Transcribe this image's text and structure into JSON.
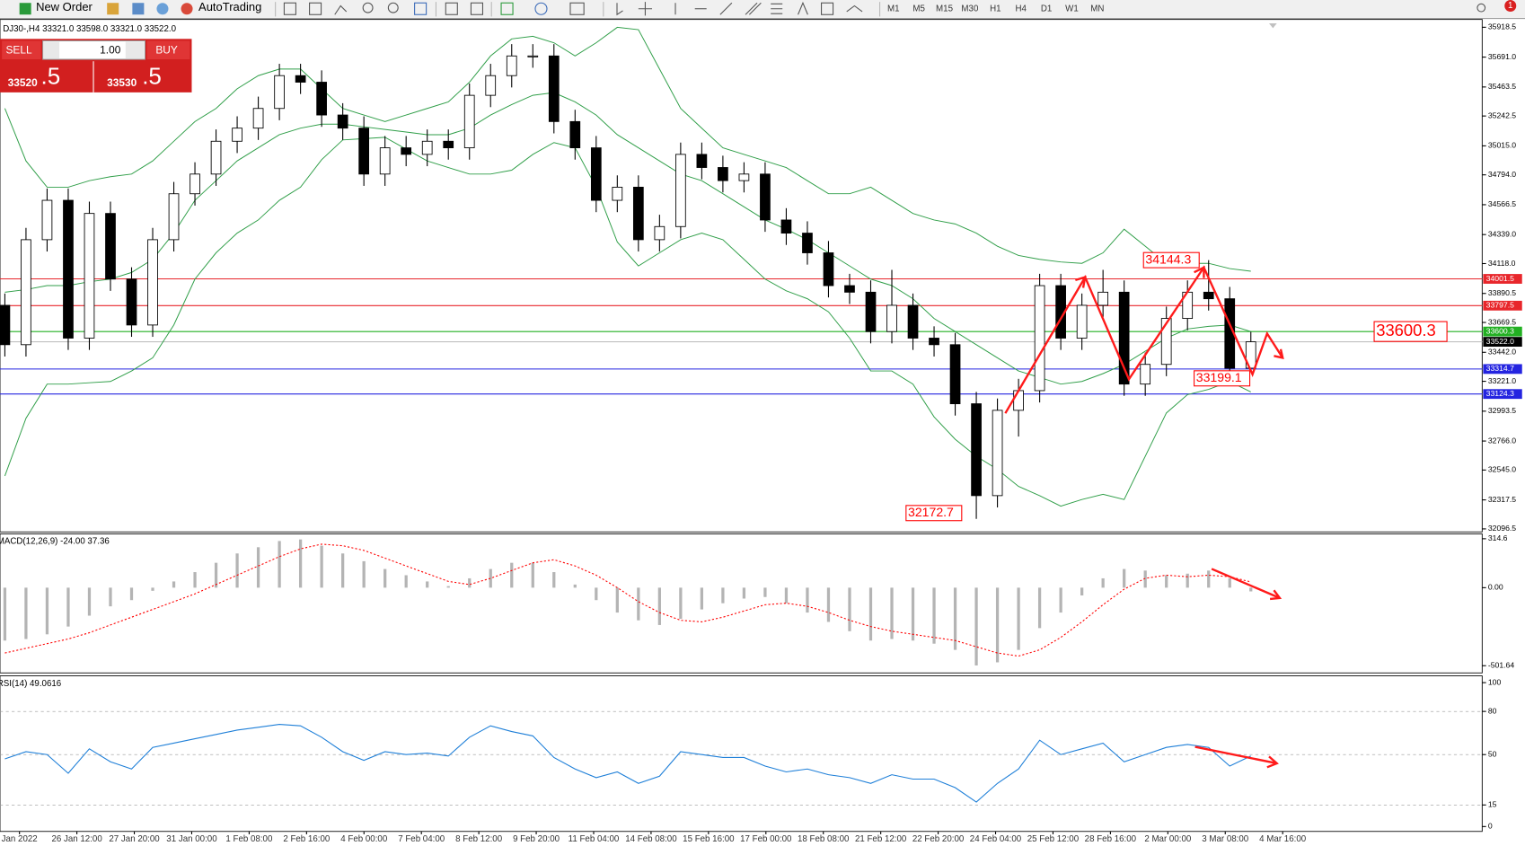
{
  "toolbar": {
    "new_order": "New Order",
    "auto_trading": "AutoTrading",
    "timeframes": [
      "M1",
      "M5",
      "M15",
      "M30",
      "H1",
      "H4",
      "D1",
      "W1",
      "MN"
    ],
    "badge": "1"
  },
  "trade_panel": {
    "sell": "SELL",
    "lot": "1.00",
    "buy": "BUY",
    "bid_main": "33520",
    "bid_pip": ".5",
    "ask_main": "33530",
    "ask_pip": ".5"
  },
  "time_axis": {
    "labels": [
      "Jan 2022",
      "26 Jan 12:00",
      "27 Jan 20:00",
      "31 Jan 00:00",
      "1 Feb 08:00",
      "2 Feb 16:00",
      "4 Feb 00:00",
      "7 Feb 04:00",
      "8 Feb 12:00",
      "9 Feb 20:00",
      "11 Feb 04:00",
      "14 Feb 08:00",
      "15 Feb 16:00",
      "17 Feb 00:00",
      "18 Feb 08:00",
      "21 Feb 12:00",
      "22 Feb 20:00",
      "24 Feb 04:00",
      "25 Feb 12:00",
      "28 Feb 16:00",
      "2 Mar 00:00",
      "3 Mar 08:00",
      "4 Mar 16:00"
    ]
  },
  "chart_data": [
    {
      "type": "candlestick",
      "title": "DJ30-,H4 33321.0 33598.0 33321.0 33522.0",
      "candles": [
        [
          33800,
          33890,
          33410,
          33500
        ],
        [
          33500,
          34390,
          33410,
          34300
        ],
        [
          34300,
          34690,
          34210,
          34600
        ],
        [
          34600,
          34690,
          33460,
          33550
        ],
        [
          33550,
          34590,
          33460,
          34500
        ],
        [
          34500,
          34590,
          33910,
          34000
        ],
        [
          34000,
          34090,
          33560,
          33650
        ],
        [
          33650,
          34390,
          33560,
          34300
        ],
        [
          34300,
          34740,
          34210,
          34650
        ],
        [
          34650,
          34890,
          34560,
          34800
        ],
        [
          34800,
          35140,
          34710,
          35050
        ],
        [
          35050,
          35240,
          34960,
          35150
        ],
        [
          35150,
          35390,
          35060,
          35300
        ],
        [
          35300,
          35640,
          35210,
          35550
        ],
        [
          35550,
          35640,
          35410,
          35500
        ],
        [
          35500,
          35590,
          35160,
          35250
        ],
        [
          35250,
          35340,
          35060,
          35150
        ],
        [
          35150,
          35240,
          34710,
          34800
        ],
        [
          34800,
          35090,
          34710,
          35000
        ],
        [
          35000,
          35090,
          34860,
          34950
        ],
        [
          34950,
          35140,
          34860,
          35050
        ],
        [
          35050,
          35140,
          34910,
          35000
        ],
        [
          35000,
          35490,
          34910,
          35400
        ],
        [
          35400,
          35640,
          35310,
          35550
        ],
        [
          35550,
          35790,
          35460,
          35700
        ],
        [
          35700,
          35790,
          35610,
          35700
        ],
        [
          35700,
          35790,
          35110,
          35200
        ],
        [
          35200,
          35290,
          34910,
          35000
        ],
        [
          35000,
          35090,
          34510,
          34600
        ],
        [
          34600,
          34790,
          34510,
          34700
        ],
        [
          34700,
          34790,
          34210,
          34300
        ],
        [
          34300,
          34490,
          34210,
          34400
        ],
        [
          34400,
          35040,
          34310,
          34950
        ],
        [
          34950,
          35040,
          34760,
          34850
        ],
        [
          34850,
          34940,
          34660,
          34750
        ],
        [
          34750,
          34890,
          34660,
          34800
        ],
        [
          34800,
          34890,
          34360,
          34450
        ],
        [
          34450,
          34540,
          34260,
          34350
        ],
        [
          34350,
          34440,
          34110,
          34200
        ],
        [
          34200,
          34290,
          33860,
          33950
        ],
        [
          33950,
          34040,
          33810,
          33900
        ],
        [
          33900,
          33990,
          33510,
          33600
        ],
        [
          33600,
          34070,
          33510,
          33800
        ],
        [
          33800,
          33890,
          33460,
          33550
        ],
        [
          33550,
          33640,
          33410,
          33500
        ],
        [
          33500,
          33590,
          32960,
          33050
        ],
        [
          33050,
          33140,
          32172.7,
          32350
        ],
        [
          32350,
          33090,
          32260,
          33000
        ],
        [
          33000,
          33240,
          32800,
          33150
        ],
        [
          33150,
          34040,
          33060,
          33950
        ],
        [
          33950,
          34040,
          33460,
          33550
        ],
        [
          33550,
          33890,
          33460,
          33800
        ],
        [
          33800,
          34070,
          33710,
          33900
        ],
        [
          33900,
          33990,
          33110,
          33200
        ],
        [
          33200,
          33440,
          33110,
          33350
        ],
        [
          33350,
          33790,
          33260,
          33700
        ],
        [
          33700,
          33990,
          33610,
          33900
        ],
        [
          33900,
          34144.3,
          33760,
          33850
        ],
        [
          33850,
          33940,
          33199.1,
          33321
        ],
        [
          33321,
          33598,
          33321,
          33522
        ]
      ],
      "bands": {
        "upper": [
          35300,
          34900,
          34700,
          34700,
          34750,
          34780,
          34800,
          34900,
          35050,
          35200,
          35300,
          35450,
          35550,
          35600,
          35600,
          35450,
          35300,
          35250,
          35200,
          35250,
          35300,
          35350,
          35500,
          35700,
          35830,
          35850,
          35800,
          35700,
          35800,
          35918,
          35900,
          35600,
          35300,
          35150,
          35000,
          34950,
          34900,
          34850,
          34750,
          34650,
          34650,
          34700,
          34600,
          34500,
          34450,
          34420,
          34350,
          34250,
          34180,
          34150,
          34130,
          34120,
          34200,
          34380,
          34250,
          34120,
          34120,
          34120,
          34080,
          34060
        ],
        "middle": [
          33900,
          33920,
          33950,
          33950,
          33980,
          34000,
          34050,
          34150,
          34350,
          34600,
          34750,
          34900,
          35000,
          35100,
          35150,
          35180,
          35180,
          35160,
          35140,
          35120,
          35100,
          35100,
          35150,
          35250,
          35330,
          35400,
          35420,
          35350,
          35250,
          35100,
          35000,
          34900,
          34800,
          34750,
          34650,
          34550,
          34450,
          34380,
          34300,
          34200,
          34100,
          34000,
          33950,
          33850,
          33700,
          33600,
          33500,
          33400,
          33300,
          33250,
          33200,
          33220,
          33280,
          33350,
          33450,
          33550,
          33620,
          33640,
          33650,
          33600
        ],
        "lower": [
          32500,
          32940,
          33200,
          33200,
          33210,
          33220,
          33300,
          33400,
          33650,
          34000,
          34200,
          34350,
          34450,
          34600,
          34700,
          34910,
          35060,
          35070,
          35080,
          34990,
          34900,
          34850,
          34800,
          34800,
          34830,
          34950,
          35040,
          35000,
          34700,
          34282,
          34100,
          34200,
          34300,
          34350,
          34300,
          34150,
          34000,
          33910,
          33850,
          33750,
          33550,
          33300,
          33300,
          33200,
          32950,
          32780,
          32650,
          32550,
          32420,
          32350,
          32270,
          32320,
          32360,
          32320,
          32650,
          32980,
          33120,
          33160,
          33220,
          33140
        ]
      },
      "band_color": "#2f9e48",
      "ylim": [
        32081,
        35978
      ],
      "yticks": [
        {
          "value": 35918.5,
          "label": "35918.5"
        },
        {
          "value": 35691,
          "label": "35691.0"
        },
        {
          "value": 35463.5,
          "label": "35463.5"
        },
        {
          "value": 35242.5,
          "label": "35242.5"
        },
        {
          "value": 35015,
          "label": "35015.0"
        },
        {
          "value": 34794,
          "label": "34794.0"
        },
        {
          "value": 34566.5,
          "label": "34566.5"
        },
        {
          "value": 34339,
          "label": "34339.0"
        },
        {
          "value": 34118,
          "label": "34118.0"
        },
        {
          "value": 33890.5,
          "label": "33890.5"
        },
        {
          "value": 33669.5,
          "label": "33669.5"
        },
        {
          "value": 33442,
          "label": "33442.0"
        },
        {
          "value": 33221,
          "label": "33221.0"
        },
        {
          "value": 32993.5,
          "label": "32993.5"
        },
        {
          "value": 32766,
          "label": "32766.0"
        },
        {
          "value": 32545,
          "label": "32545.0"
        },
        {
          "value": 32317.5,
          "label": "32317.5"
        },
        {
          "value": 32096.5,
          "label": "32096.5"
        }
      ],
      "levels": [
        {
          "value": 34001.5,
          "color": "#e8262b"
        },
        {
          "value": 33797.5,
          "color": "#e8262b"
        },
        {
          "value": 33600.3,
          "color": "#22b022"
        },
        {
          "value": 33314.7,
          "color": "#2424e0"
        },
        {
          "value": 33124.3,
          "color": "#2424e0"
        }
      ],
      "current": {
        "value": 33522,
        "label": "33522.0"
      },
      "price_labels": [
        34144.3,
        33199.1,
        32172.7,
        33600.3
      ],
      "label_color": "#ff0000"
    },
    {
      "type": "macd",
      "title": "MACD(12,26,9) -24.00 37.36",
      "histogram": [
        -340,
        -330,
        -300,
        -250,
        -180,
        -120,
        -80,
        -20,
        40,
        100,
        160,
        220,
        260,
        300,
        310,
        270,
        220,
        170,
        120,
        80,
        40,
        10,
        60,
        120,
        160,
        160,
        100,
        20,
        -80,
        -160,
        -210,
        -240,
        -200,
        -140,
        -100,
        -70,
        -60,
        -100,
        -160,
        -220,
        -280,
        -340,
        -330,
        -340,
        -360,
        -400,
        -500,
        -480,
        -400,
        -260,
        -160,
        -50,
        60,
        120,
        110,
        80,
        90,
        110,
        60,
        -24
      ],
      "signal": [
        -420,
        -390,
        -360,
        -330,
        -290,
        -240,
        -190,
        -140,
        -90,
        -40,
        20,
        80,
        140,
        200,
        250,
        280,
        270,
        240,
        190,
        140,
        90,
        40,
        20,
        60,
        110,
        160,
        180,
        140,
        80,
        0,
        -90,
        -160,
        -210,
        -220,
        -190,
        -150,
        -110,
        -100,
        -120,
        -160,
        -210,
        -250,
        -280,
        -300,
        -320,
        -340,
        -380,
        -420,
        -440,
        -400,
        -320,
        -220,
        -110,
        -10,
        60,
        80,
        70,
        80,
        70,
        37.36
      ],
      "histogram_color": "#b4b4b4",
      "signal_color": "#ff0000",
      "ylim": [
        -548,
        346
      ],
      "yticks": [
        314.6,
        {
          "value": 0,
          "label": "0.00"
        },
        -501.64
      ]
    },
    {
      "type": "line",
      "title": "RSI(14) 49.0616",
      "values": [
        47,
        52,
        50,
        37,
        54,
        45,
        40,
        55,
        58,
        61,
        64,
        67,
        69,
        71,
        70,
        62,
        52,
        46,
        52,
        50,
        51,
        49,
        62,
        70,
        66,
        63,
        48,
        40,
        34,
        38,
        30,
        35,
        52,
        50,
        48,
        48,
        42,
        38,
        40,
        36,
        34,
        30,
        36,
        33,
        33,
        27,
        17,
        30,
        40,
        60,
        50,
        54,
        58,
        45,
        50,
        55,
        57,
        55,
        42,
        49.0616
      ],
      "color": "#1e7fd8",
      "ylim": [
        0,
        100
      ],
      "yticks": [
        100,
        80,
        50,
        15,
        0
      ],
      "grid": true
    }
  ]
}
